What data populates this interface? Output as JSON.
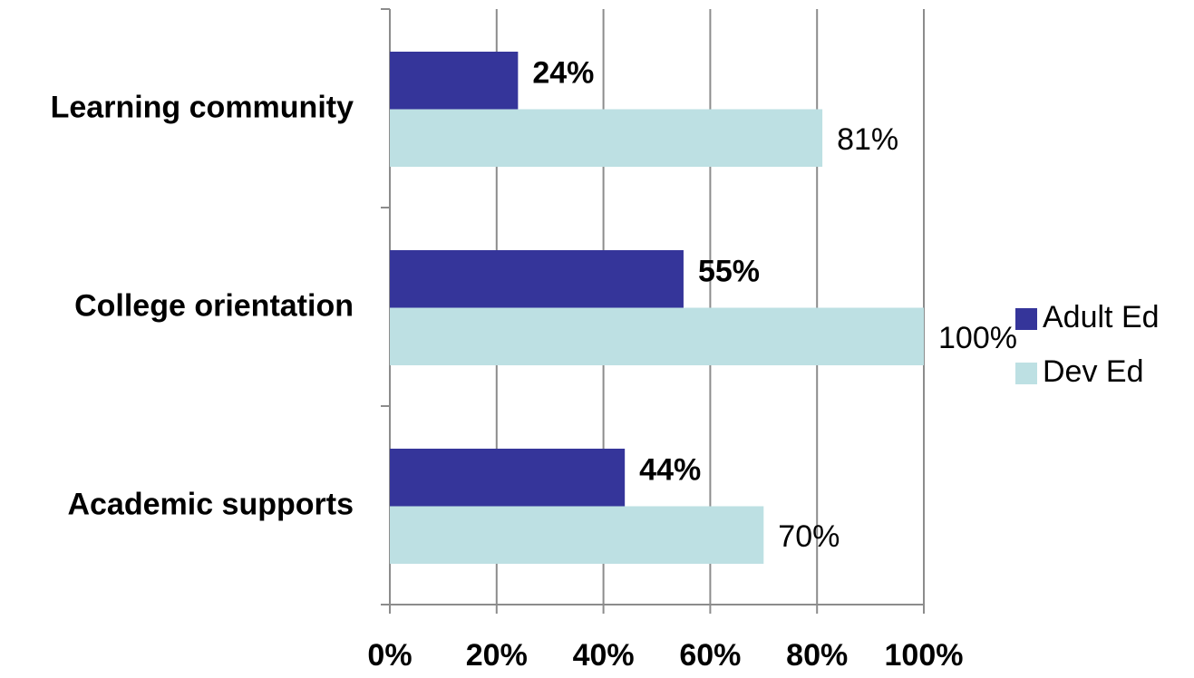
{
  "chart_data": {
    "type": "bar",
    "orientation": "horizontal",
    "categories": [
      "Learning community",
      "College orientation",
      "Academic supports"
    ],
    "series": [
      {
        "name": "Adult Ed",
        "color": "#35359a",
        "values": [
          24,
          55,
          44
        ],
        "value_labels": [
          "24%",
          "55%",
          "44%"
        ]
      },
      {
        "name": "Dev Ed",
        "color": "#bde0e3",
        "values": [
          81,
          100,
          70
        ],
        "value_labels": [
          "81%",
          "100%",
          "70%"
        ]
      }
    ],
    "xlim": [
      0,
      100
    ],
    "xticks": [
      {
        "value": 0,
        "label": "0%"
      },
      {
        "value": 20,
        "label": "20%"
      },
      {
        "value": 40,
        "label": "40%"
      },
      {
        "value": 60,
        "label": "60%"
      },
      {
        "value": 80,
        "label": "80%"
      },
      {
        "value": 100,
        "label": "100%"
      }
    ],
    "grid": true,
    "legend": "right"
  }
}
